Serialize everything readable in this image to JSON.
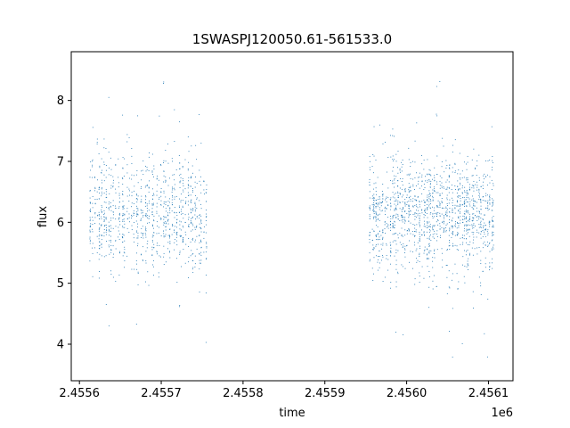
{
  "chart_data": {
    "type": "scatter",
    "title": "1SWASPJ120050.61-561533.0",
    "xlabel": "time",
    "ylabel": "flux",
    "x_offset_label": "1e6",
    "xlim": [
      2455590,
      2456130
    ],
    "ylim": [
      3.4,
      8.8
    ],
    "x_ticks": [
      2455600,
      2455700,
      2455800,
      2455900,
      2456000,
      2456100
    ],
    "x_tick_labels": [
      "2.4556",
      "2.4557",
      "2.4558",
      "2.4559",
      "2.4560",
      "2.4561"
    ],
    "y_ticks": [
      4,
      5,
      6,
      7,
      8
    ],
    "y_tick_labels": [
      "4",
      "5",
      "6",
      "7",
      "8"
    ],
    "grid": false,
    "series_color": "#1f77b4",
    "clusters": [
      {
        "x_start": 2455612,
        "x_end": 2455756,
        "y_center": 6.15,
        "y_spread": 0.45,
        "y_min": 3.6,
        "y_max": 8.5
      },
      {
        "x_start": 2455954,
        "x_end": 2456107,
        "y_center": 6.15,
        "y_spread": 0.45,
        "y_min": 3.7,
        "y_max": 8.55
      }
    ]
  }
}
